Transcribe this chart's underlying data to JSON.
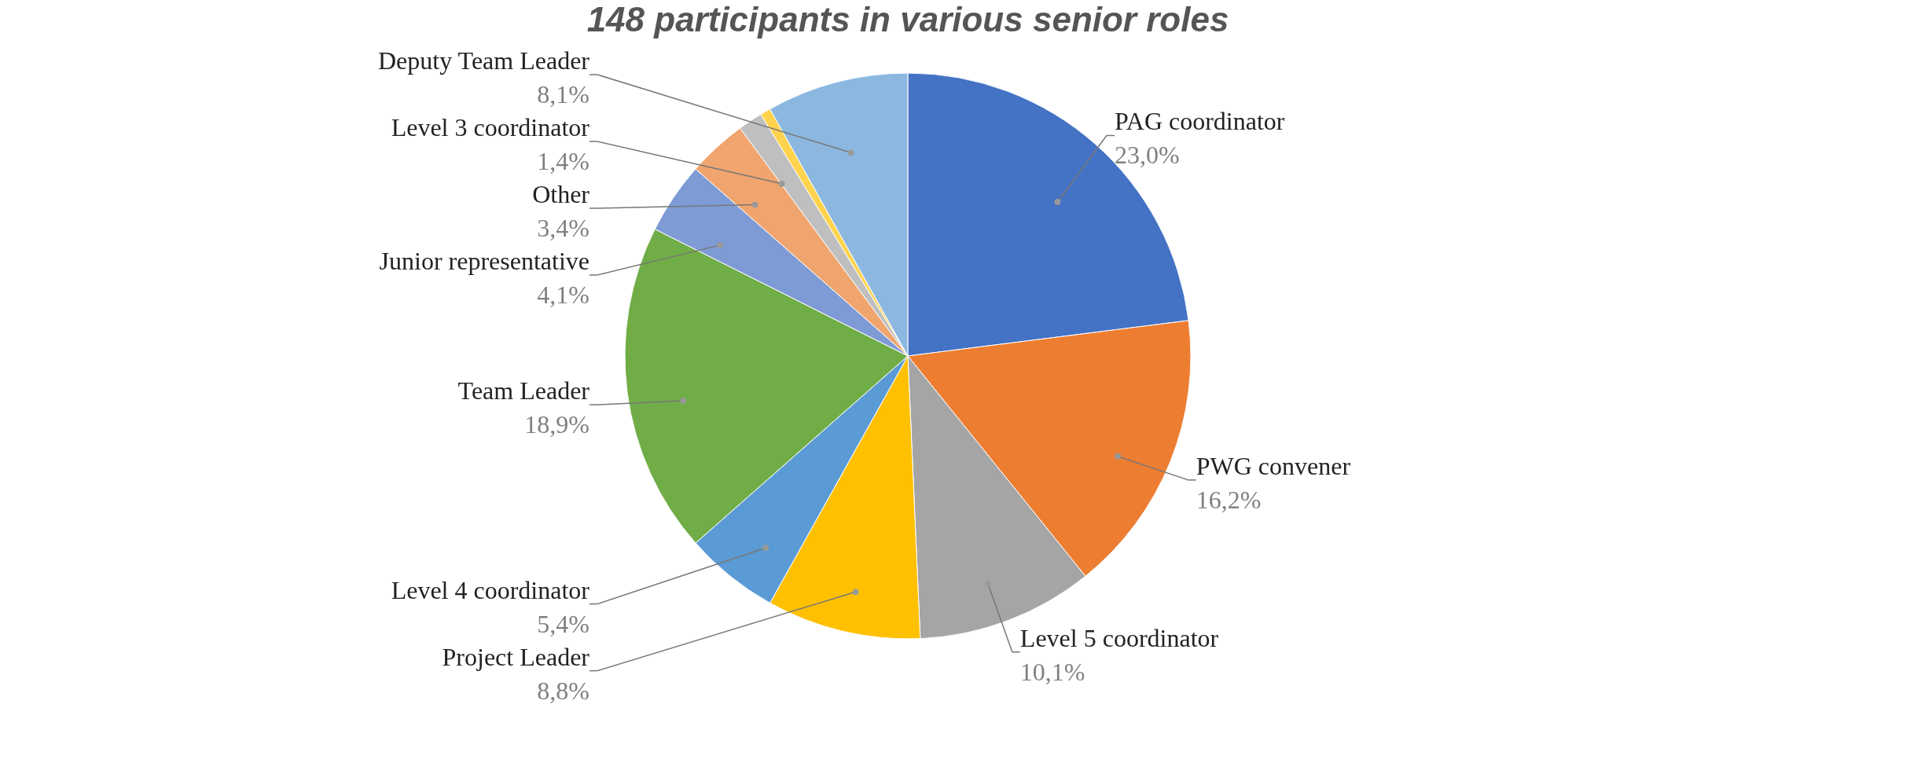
{
  "chart_data": {
    "type": "pie",
    "title": "148 participants in various senior roles",
    "categories": [
      "PAG coordinator",
      "PWG convener",
      "Level 5 coordinator",
      "Project Leader",
      "Level 4 coordinator",
      "Team Leader",
      "Junior representative",
      "Other",
      "Level 3 coordinator",
      null,
      "Deputy Team Leader"
    ],
    "values": [
      23.0,
      16.2,
      10.1,
      8.8,
      5.4,
      18.9,
      4.1,
      3.4,
      1.4,
      0.6,
      8.1
    ],
    "value_labels": [
      "23,0%",
      "16,2%",
      "10,1%",
      "8,8%",
      "5,4%",
      "18,9%",
      "4,1%",
      "3,4%",
      "1,4%",
      null,
      "8,1%"
    ],
    "colors": [
      "#4472c4",
      "#ed7d31",
      "#a5a5a5",
      "#ffc000",
      "#5b9bd5",
      "#70ad47",
      "#7e9bd6",
      "#f0a46e",
      "#bfbfbf",
      "#ffd34d",
      "#8cb8e0"
    ]
  }
}
